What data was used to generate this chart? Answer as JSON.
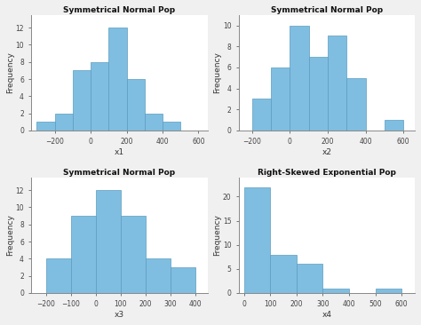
{
  "title_color": "black",
  "bar_color": "#7fbee0",
  "bar_edgecolor": "#5a9bbf",
  "plot_bg_color": "#ffffff",
  "fig_bg_color": "#f0f0f0",
  "plots": [
    {
      "title": "Symmetrical Normal Pop",
      "xlabel": "x1",
      "ylabel": "Frequency",
      "bin_edges": [
        -300,
        -200,
        -100,
        0,
        100,
        200,
        300,
        400,
        500,
        600
      ],
      "frequencies": [
        1,
        2,
        7,
        8,
        12,
        6,
        2,
        1,
        0
      ],
      "xlim": [
        -330,
        650
      ],
      "ylim": [
        0,
        13.5
      ],
      "xticks": [
        -200,
        0,
        200,
        400,
        600
      ],
      "yticks": [
        0,
        2,
        4,
        6,
        8,
        10,
        12
      ]
    },
    {
      "title": "Symmetrical Normal Pop",
      "xlabel": "x2",
      "ylabel": "Frequency",
      "bin_edges": [
        -200,
        -100,
        0,
        100,
        200,
        300,
        400,
        500,
        600
      ],
      "frequencies": [
        3,
        6,
        10,
        7,
        9,
        5,
        0,
        1
      ],
      "xlim": [
        -270,
        660
      ],
      "ylim": [
        0,
        11
      ],
      "xticks": [
        -200,
        0,
        200,
        400,
        600
      ],
      "yticks": [
        0,
        2,
        4,
        6,
        8,
        10
      ]
    },
    {
      "title": "Symmetrical Normal Pop",
      "xlabel": "x3",
      "ylabel": "Frequency",
      "bin_edges": [
        -200,
        -100,
        0,
        100,
        200,
        300,
        400
      ],
      "frequencies": [
        4,
        9,
        12,
        9,
        4,
        3
      ],
      "xlim": [
        -260,
        450
      ],
      "ylim": [
        0,
        13.5
      ],
      "xticks": [
        -200,
        -100,
        0,
        100,
        200,
        300,
        400
      ],
      "yticks": [
        0,
        2,
        4,
        6,
        8,
        10,
        12
      ]
    },
    {
      "title": "Right-Skewed Exponential Pop",
      "xlabel": "x4",
      "ylabel": "Frequency",
      "bin_edges": [
        0,
        100,
        200,
        300,
        400,
        500,
        600
      ],
      "frequencies": [
        22,
        8,
        6,
        1,
        0,
        1
      ],
      "xlim": [
        -20,
        650
      ],
      "ylim": [
        0,
        24
      ],
      "xticks": [
        0,
        100,
        200,
        300,
        400,
        500,
        600
      ],
      "yticks": [
        0,
        5,
        10,
        15,
        20
      ]
    }
  ]
}
